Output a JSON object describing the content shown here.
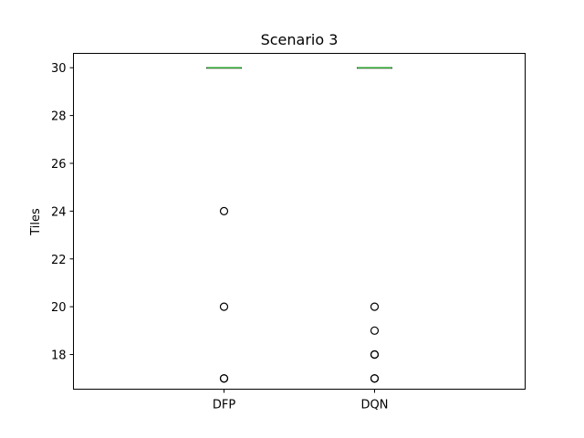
{
  "chart_data": {
    "type": "box",
    "title": "Scenario 3",
    "xlabel": "",
    "ylabel": "Tiles",
    "categories": [
      "DFP",
      "DQN"
    ],
    "ylim": [
      16.55,
      30.6
    ],
    "yticks": [
      18,
      20,
      22,
      24,
      26,
      28,
      30
    ],
    "grid": false,
    "boxes": [
      {
        "name": "DFP",
        "q1": 30,
        "median": 30,
        "q3": 30,
        "whisker_low": 30,
        "whisker_high": 30,
        "outliers": [
          24,
          20,
          17,
          17
        ]
      },
      {
        "name": "DQN",
        "q1": 30,
        "median": 30,
        "q3": 30,
        "whisker_low": 30,
        "whisker_high": 30,
        "outliers": [
          20,
          19,
          18,
          18,
          17,
          17
        ]
      }
    ],
    "colors": {
      "box": "#000000",
      "median": "#2ca02c",
      "outlier": "#000000"
    }
  }
}
